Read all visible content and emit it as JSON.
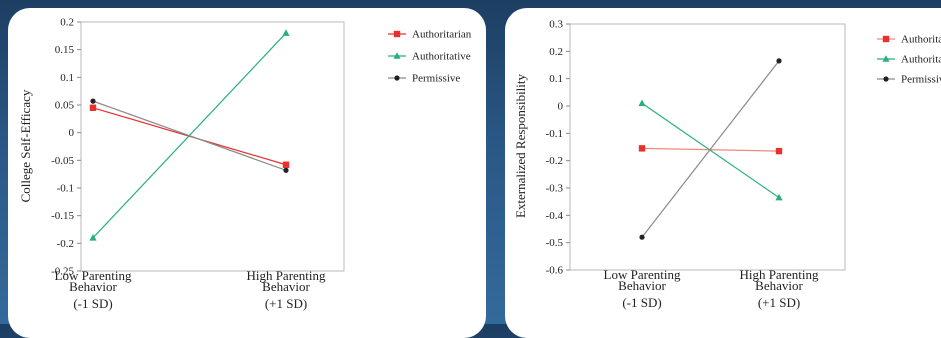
{
  "chart_data": [
    {
      "type": "line",
      "title": "",
      "ylabel": "College Self-Efficacy",
      "xlabel": "",
      "categories": [
        [
          "Low Parenting",
          "Behavior",
          "(-1 SD)"
        ],
        [
          "High Parenting",
          "Behavior",
          "(+1 SD)"
        ]
      ],
      "ylim": [
        -0.25,
        0.2
      ],
      "yticks": [
        0.2,
        0.15,
        0.1,
        0.05,
        0,
        -0.05,
        -0.1,
        -0.15,
        -0.2,
        -0.25
      ],
      "ytick_labels": [
        "0.2",
        "0.15",
        "0.1",
        "0.05",
        "0",
        "-0.05",
        "-0.1",
        "-0.15",
        "-0.2",
        "-0.25"
      ],
      "legend_position": "top-right",
      "series": [
        {
          "name": "Authoritarian",
          "values": [
            0.045,
            -0.058
          ],
          "color": "#e8302c",
          "marker": "square"
        },
        {
          "name": "Authoritative",
          "values": [
            -0.19,
            0.18
          ],
          "color": "#27b07a",
          "marker": "triangle"
        },
        {
          "name": "Permissive",
          "values": [
            0.057,
            -0.068
          ],
          "color": "#222222",
          "line_color": "#8a8a8a",
          "marker": "circle"
        }
      ]
    },
    {
      "type": "line",
      "title": "",
      "ylabel": "Externalized Responsibility",
      "xlabel": "",
      "categories": [
        [
          "Low Parenting",
          "Behavior",
          "(-1 SD)"
        ],
        [
          "High Parenting",
          "Behavior",
          "(+1 SD)"
        ]
      ],
      "ylim": [
        -0.6,
        0.3
      ],
      "yticks": [
        0.3,
        0.2,
        0.1,
        0,
        -0.1,
        -0.2,
        -0.3,
        -0.4,
        -0.5,
        -0.6
      ],
      "ytick_labels": [
        "0.3",
        "0.2",
        "0.1",
        "0",
        "-0.1",
        "-0.2",
        "-0.3",
        "-0.4",
        "-0.5",
        "-0.6"
      ],
      "legend_position": "top-right",
      "series": [
        {
          "name": "Authoritarian",
          "values": [
            -0.155,
            -0.165
          ],
          "color": "#e8302c",
          "line_color": "#f08a7a",
          "marker": "square"
        },
        {
          "name": "Authoritative",
          "values": [
            0.01,
            -0.335
          ],
          "color": "#27b07a",
          "marker": "triangle"
        },
        {
          "name": "Permissive",
          "values": [
            -0.48,
            0.165
          ],
          "color": "#222222",
          "line_color": "#8a8a8a",
          "marker": "circle"
        }
      ]
    }
  ]
}
